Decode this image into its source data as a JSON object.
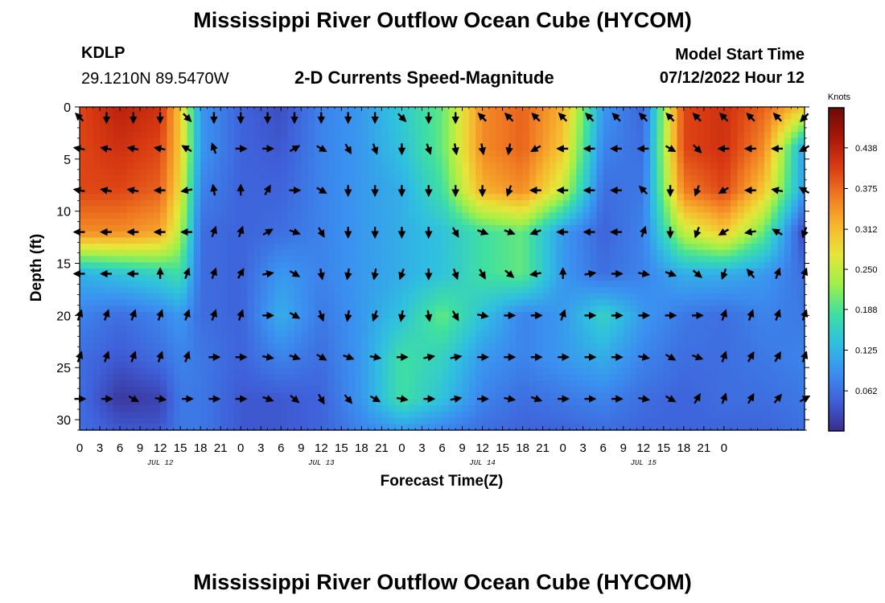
{
  "header": {
    "title": "Mississippi River Outflow Ocean Cube (HYCOM)",
    "station": "KDLP",
    "coords": "29.1210N  89.5470W",
    "subtitle": "2-D Currents Speed-Magnitude",
    "model_start_label": "Model Start Time",
    "model_start_value": "07/12/2022 Hour 12"
  },
  "footer": {
    "title": "Mississippi River Outflow Ocean Cube (HYCOM)"
  },
  "colors": {
    "scale": [
      "#3a2c8e",
      "#3f5fd8",
      "#3b8ff0",
      "#2fc0e0",
      "#3fe0a0",
      "#9ef04a",
      "#e6e63a",
      "#f7b52e",
      "#f07a22",
      "#d93a12",
      "#a8160a",
      "#6a0c06"
    ],
    "arrow": "#000000"
  },
  "chart_data": {
    "type": "heatmap",
    "title": "2-D Currents Speed-Magnitude",
    "xlabel": "Forecast Time(Z)",
    "ylabel": "Depth (ft)",
    "x_range_hours": [
      0,
      108
    ],
    "x_tick_labels": [
      "0",
      "3",
      "6",
      "9",
      "12",
      "15",
      "18",
      "21",
      "0",
      "3",
      "6",
      "9",
      "12",
      "15",
      "18",
      "21",
      "0",
      "3",
      "6",
      "9",
      "12",
      "15",
      "18",
      "21",
      "0",
      "3",
      "6",
      "9",
      "12",
      "15",
      "18",
      "21",
      "0"
    ],
    "day_labels": [
      "JUL 12",
      "JUL 13",
      "JUL 14",
      "JUL 15"
    ],
    "y_ticks": [
      0,
      5,
      10,
      15,
      20,
      25,
      30
    ],
    "ylim": [
      0,
      31
    ],
    "y_inverted": true,
    "colorbar": {
      "label": "Knots",
      "ticks": [
        "0.438",
        "0.375",
        "0.312",
        "0.250",
        "0.188",
        "0.125",
        "0.062"
      ],
      "range": [
        0,
        0.5
      ]
    },
    "depth_rows": [
      1,
      4,
      8,
      12,
      16,
      20,
      24,
      28
    ],
    "arrow_hours": [
      0,
      4,
      8,
      12,
      16,
      20,
      24,
      28,
      32,
      36,
      40,
      44,
      48,
      52,
      56,
      60,
      64,
      68,
      72,
      76,
      80,
      84,
      88,
      92,
      96,
      100,
      104,
      108
    ],
    "speed_grid_hours": [
      0,
      6,
      12,
      15,
      18,
      24,
      30,
      36,
      42,
      48,
      54,
      60,
      66,
      72,
      78,
      84,
      90,
      96,
      102,
      108
    ],
    "speed_grid_depths": [
      0,
      4,
      8,
      12,
      16,
      20,
      24,
      28,
      31
    ],
    "speed_knots": [
      [
        0.4,
        0.44,
        0.42,
        0.3,
        0.1,
        0.05,
        0.03,
        0.08,
        0.1,
        0.15,
        0.2,
        0.35,
        0.38,
        0.32,
        0.1,
        0.05,
        0.4,
        0.42,
        0.38,
        0.3
      ],
      [
        0.4,
        0.42,
        0.4,
        0.3,
        0.1,
        0.05,
        0.04,
        0.08,
        0.1,
        0.14,
        0.2,
        0.35,
        0.38,
        0.3,
        0.08,
        0.06,
        0.4,
        0.42,
        0.35,
        0.1
      ],
      [
        0.4,
        0.4,
        0.38,
        0.28,
        0.08,
        0.05,
        0.05,
        0.08,
        0.1,
        0.12,
        0.18,
        0.32,
        0.35,
        0.25,
        0.06,
        0.07,
        0.36,
        0.4,
        0.3,
        0.1
      ],
      [
        0.35,
        0.35,
        0.33,
        0.24,
        0.06,
        0.05,
        0.06,
        0.08,
        0.1,
        0.12,
        0.14,
        0.18,
        0.2,
        0.1,
        0.05,
        0.08,
        0.25,
        0.3,
        0.2,
        0.02
      ],
      [
        0.12,
        0.14,
        0.16,
        0.18,
        0.06,
        0.05,
        0.1,
        0.08,
        0.1,
        0.12,
        0.14,
        0.18,
        0.2,
        0.1,
        0.06,
        0.08,
        0.12,
        0.12,
        0.1,
        0.06
      ],
      [
        0.08,
        0.06,
        0.08,
        0.1,
        0.06,
        0.05,
        0.12,
        0.07,
        0.1,
        0.14,
        0.2,
        0.14,
        0.08,
        0.1,
        0.16,
        0.1,
        0.07,
        0.06,
        0.08,
        0.07
      ],
      [
        0.06,
        0.04,
        0.06,
        0.08,
        0.07,
        0.05,
        0.08,
        0.06,
        0.1,
        0.18,
        0.16,
        0.1,
        0.08,
        0.1,
        0.12,
        0.08,
        0.06,
        0.06,
        0.07,
        0.08
      ],
      [
        0.06,
        0.01,
        0.02,
        0.07,
        0.07,
        0.04,
        0.04,
        0.05,
        0.1,
        0.18,
        0.14,
        0.08,
        0.06,
        0.07,
        0.08,
        0.06,
        0.05,
        0.06,
        0.06,
        0.07
      ],
      [
        0.06,
        0.04,
        0.04,
        0.07,
        0.07,
        0.04,
        0.04,
        0.05,
        0.08,
        0.1,
        0.08,
        0.06,
        0.05,
        0.05,
        0.06,
        0.05,
        0.05,
        0.05,
        0.05,
        0.06
      ]
    ],
    "direction_deg": [
      [
        315,
        180,
        180,
        180,
        135,
        180,
        180,
        180,
        180,
        180,
        180,
        180,
        135,
        180,
        180,
        315,
        315,
        315,
        315,
        315,
        315,
        315,
        315,
        315,
        315,
        315,
        315,
        225
      ],
      [
        280,
        280,
        280,
        280,
        300,
        340,
        90,
        90,
        60,
        120,
        150,
        160,
        180,
        160,
        170,
        170,
        190,
        240,
        270,
        270,
        270,
        270,
        120,
        135,
        270,
        270,
        270,
        240
      ],
      [
        280,
        280,
        280,
        270,
        260,
        350,
        0,
        30,
        90,
        120,
        180,
        180,
        180,
        180,
        180,
        180,
        200,
        270,
        270,
        270,
        270,
        315,
        180,
        200,
        240,
        270,
        280,
        300
      ],
      [
        270,
        270,
        270,
        270,
        270,
        20,
        20,
        60,
        110,
        150,
        180,
        180,
        180,
        180,
        150,
        110,
        110,
        250,
        270,
        270,
        270,
        20,
        180,
        200,
        240,
        260,
        300,
        200
      ],
      [
        270,
        270,
        270,
        0,
        20,
        20,
        30,
        80,
        120,
        170,
        190,
        190,
        200,
        180,
        160,
        150,
        130,
        260,
        0,
        80,
        90,
        100,
        110,
        130,
        200,
        320,
        20,
        20
      ],
      [
        20,
        20,
        20,
        20,
        20,
        20,
        20,
        90,
        120,
        160,
        190,
        200,
        190,
        170,
        150,
        100,
        90,
        90,
        20,
        90,
        90,
        90,
        90,
        90,
        20,
        20,
        20,
        20
      ],
      [
        20,
        20,
        20,
        20,
        20,
        90,
        90,
        100,
        110,
        120,
        110,
        100,
        90,
        80,
        80,
        90,
        90,
        90,
        90,
        90,
        90,
        100,
        120,
        110,
        20,
        30,
        30,
        20
      ],
      [
        90,
        90,
        120,
        100,
        90,
        90,
        90,
        110,
        130,
        150,
        140,
        120,
        100,
        90,
        80,
        90,
        100,
        110,
        90,
        90,
        90,
        100,
        120,
        30,
        20,
        30,
        40,
        60
      ]
    ]
  }
}
